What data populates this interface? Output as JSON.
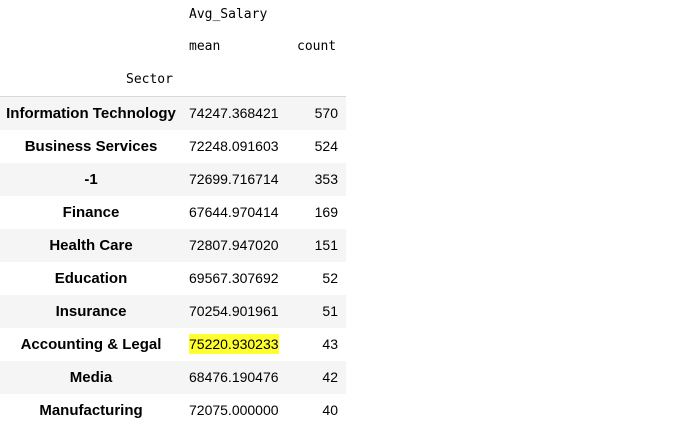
{
  "header": {
    "column_group": "Avg_Salary",
    "col_mean": "mean",
    "col_count": "count",
    "index_name": "Sector"
  },
  "highlight_color": "#ffff30",
  "rows": [
    {
      "sector": "Information Technology",
      "mean": "74247.368421",
      "count": "570",
      "highlighted": false
    },
    {
      "sector": "Business Services",
      "mean": "72248.091603",
      "count": "524",
      "highlighted": false
    },
    {
      "sector": "-1",
      "mean": "72699.716714",
      "count": "353",
      "highlighted": false
    },
    {
      "sector": "Finance",
      "mean": "67644.970414",
      "count": "169",
      "highlighted": false
    },
    {
      "sector": "Health Care",
      "mean": "72807.947020",
      "count": "151",
      "highlighted": false
    },
    {
      "sector": "Education",
      "mean": "69567.307692",
      "count": "52",
      "highlighted": false
    },
    {
      "sector": "Insurance",
      "mean": "70254.901961",
      "count": "51",
      "highlighted": false
    },
    {
      "sector": "Accounting & Legal",
      "mean": "75220.930233",
      "count": "43",
      "highlighted": true
    },
    {
      "sector": "Media",
      "mean": "68476.190476",
      "count": "42",
      "highlighted": false
    },
    {
      "sector": "Manufacturing",
      "mean": "72075.000000",
      "count": "40",
      "highlighted": false
    }
  ]
}
